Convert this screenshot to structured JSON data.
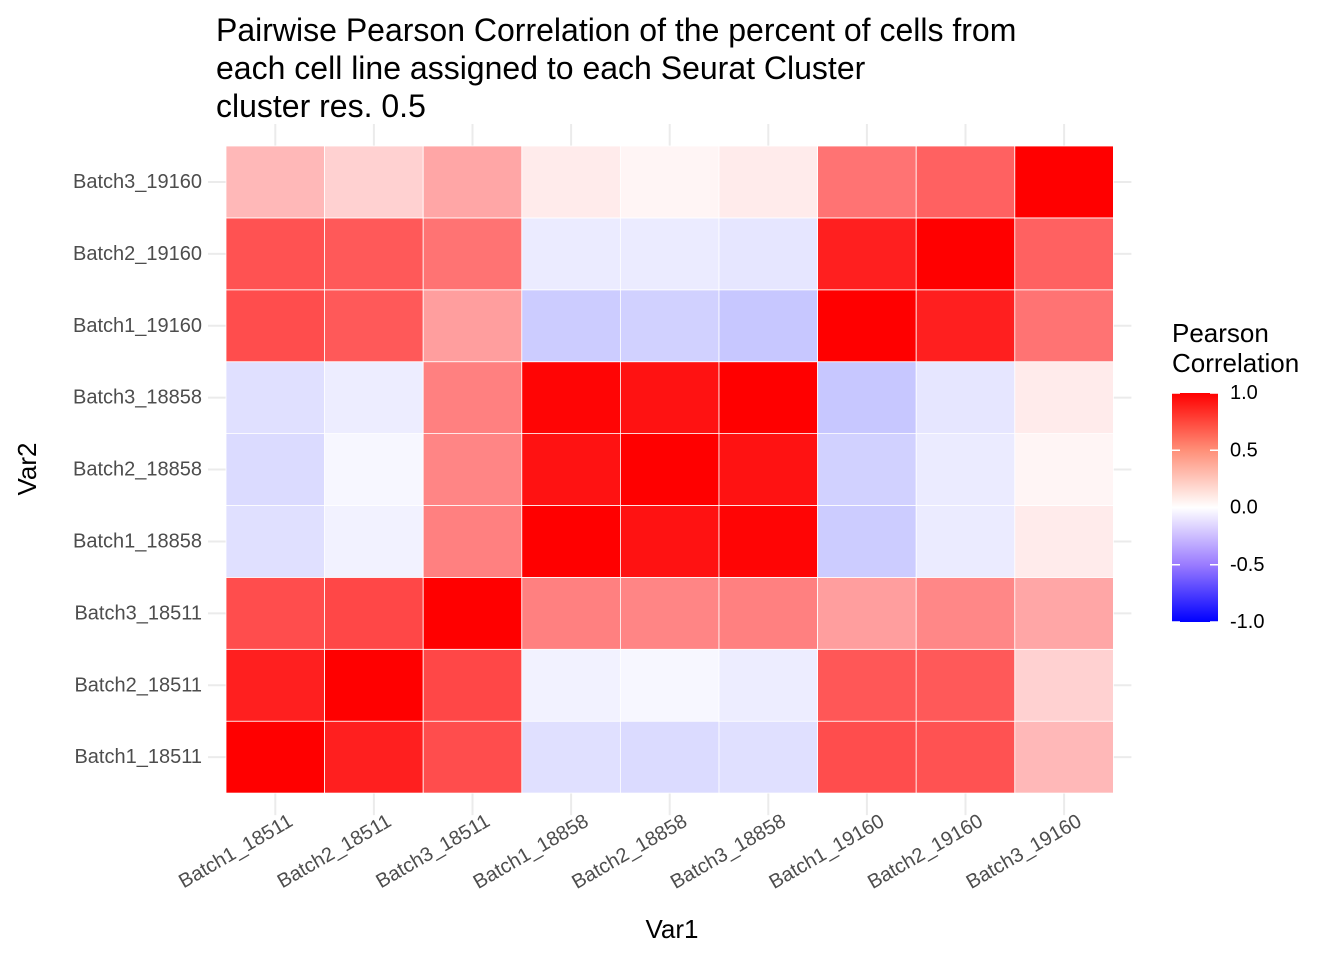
{
  "chart_data": {
    "type": "heatmap",
    "title_lines": [
      "Pairwise Pearson Correlation of the percent of cells from",
      "each cell line assigned to each Seurat Cluster",
      "cluster res. 0.5"
    ],
    "xlabel": "Var1",
    "ylabel": "Var2",
    "x_categories": [
      "Batch1_18511",
      "Batch2_18511",
      "Batch3_18511",
      "Batch1_18858",
      "Batch2_18858",
      "Batch3_18858",
      "Batch1_19160",
      "Batch2_19160",
      "Batch3_19160"
    ],
    "y_categories": [
      "Batch1_18511",
      "Batch2_18511",
      "Batch3_18511",
      "Batch1_18858",
      "Batch2_18858",
      "Batch3_18858",
      "Batch1_19160",
      "Batch2_19160",
      "Batch3_19160"
    ],
    "values": [
      [
        1.0,
        0.88,
        0.7,
        -0.12,
        -0.14,
        -0.12,
        0.7,
        0.68,
        0.28
      ],
      [
        0.88,
        1.0,
        0.72,
        -0.05,
        -0.03,
        -0.07,
        0.66,
        0.65,
        0.18
      ],
      [
        0.7,
        0.72,
        1.0,
        0.5,
        0.48,
        0.5,
        0.38,
        0.47,
        0.35
      ],
      [
        -0.12,
        -0.05,
        0.5,
        1.0,
        0.93,
        0.98,
        -0.2,
        -0.08,
        0.08
      ],
      [
        -0.14,
        -0.03,
        0.48,
        0.93,
        1.0,
        0.93,
        -0.18,
        -0.08,
        0.04
      ],
      [
        -0.12,
        -0.07,
        0.5,
        0.98,
        0.93,
        1.0,
        -0.22,
        -0.1,
        0.08
      ],
      [
        0.7,
        0.65,
        0.38,
        -0.2,
        -0.18,
        -0.22,
        1.0,
        0.88,
        0.55
      ],
      [
        0.68,
        0.65,
        0.55,
        -0.08,
        -0.08,
        -0.1,
        0.88,
        1.0,
        0.62
      ],
      [
        0.28,
        0.18,
        0.35,
        0.08,
        0.04,
        0.08,
        0.55,
        0.62,
        1.0
      ]
    ],
    "color_scale": {
      "low": "#0000FF",
      "mid": "#FFFFFF",
      "high": "#FF0000",
      "limits": [
        -1,
        1
      ]
    },
    "legend": {
      "title_lines": [
        "Pearson",
        "Correlation"
      ],
      "ticks": [
        1.0,
        0.5,
        0.0,
        -0.5,
        -1.0
      ],
      "tick_labels": [
        "1.0",
        "0.5",
        "0.0",
        "-0.5",
        "-1.0"
      ],
      "position": "right"
    },
    "grid": true
  }
}
